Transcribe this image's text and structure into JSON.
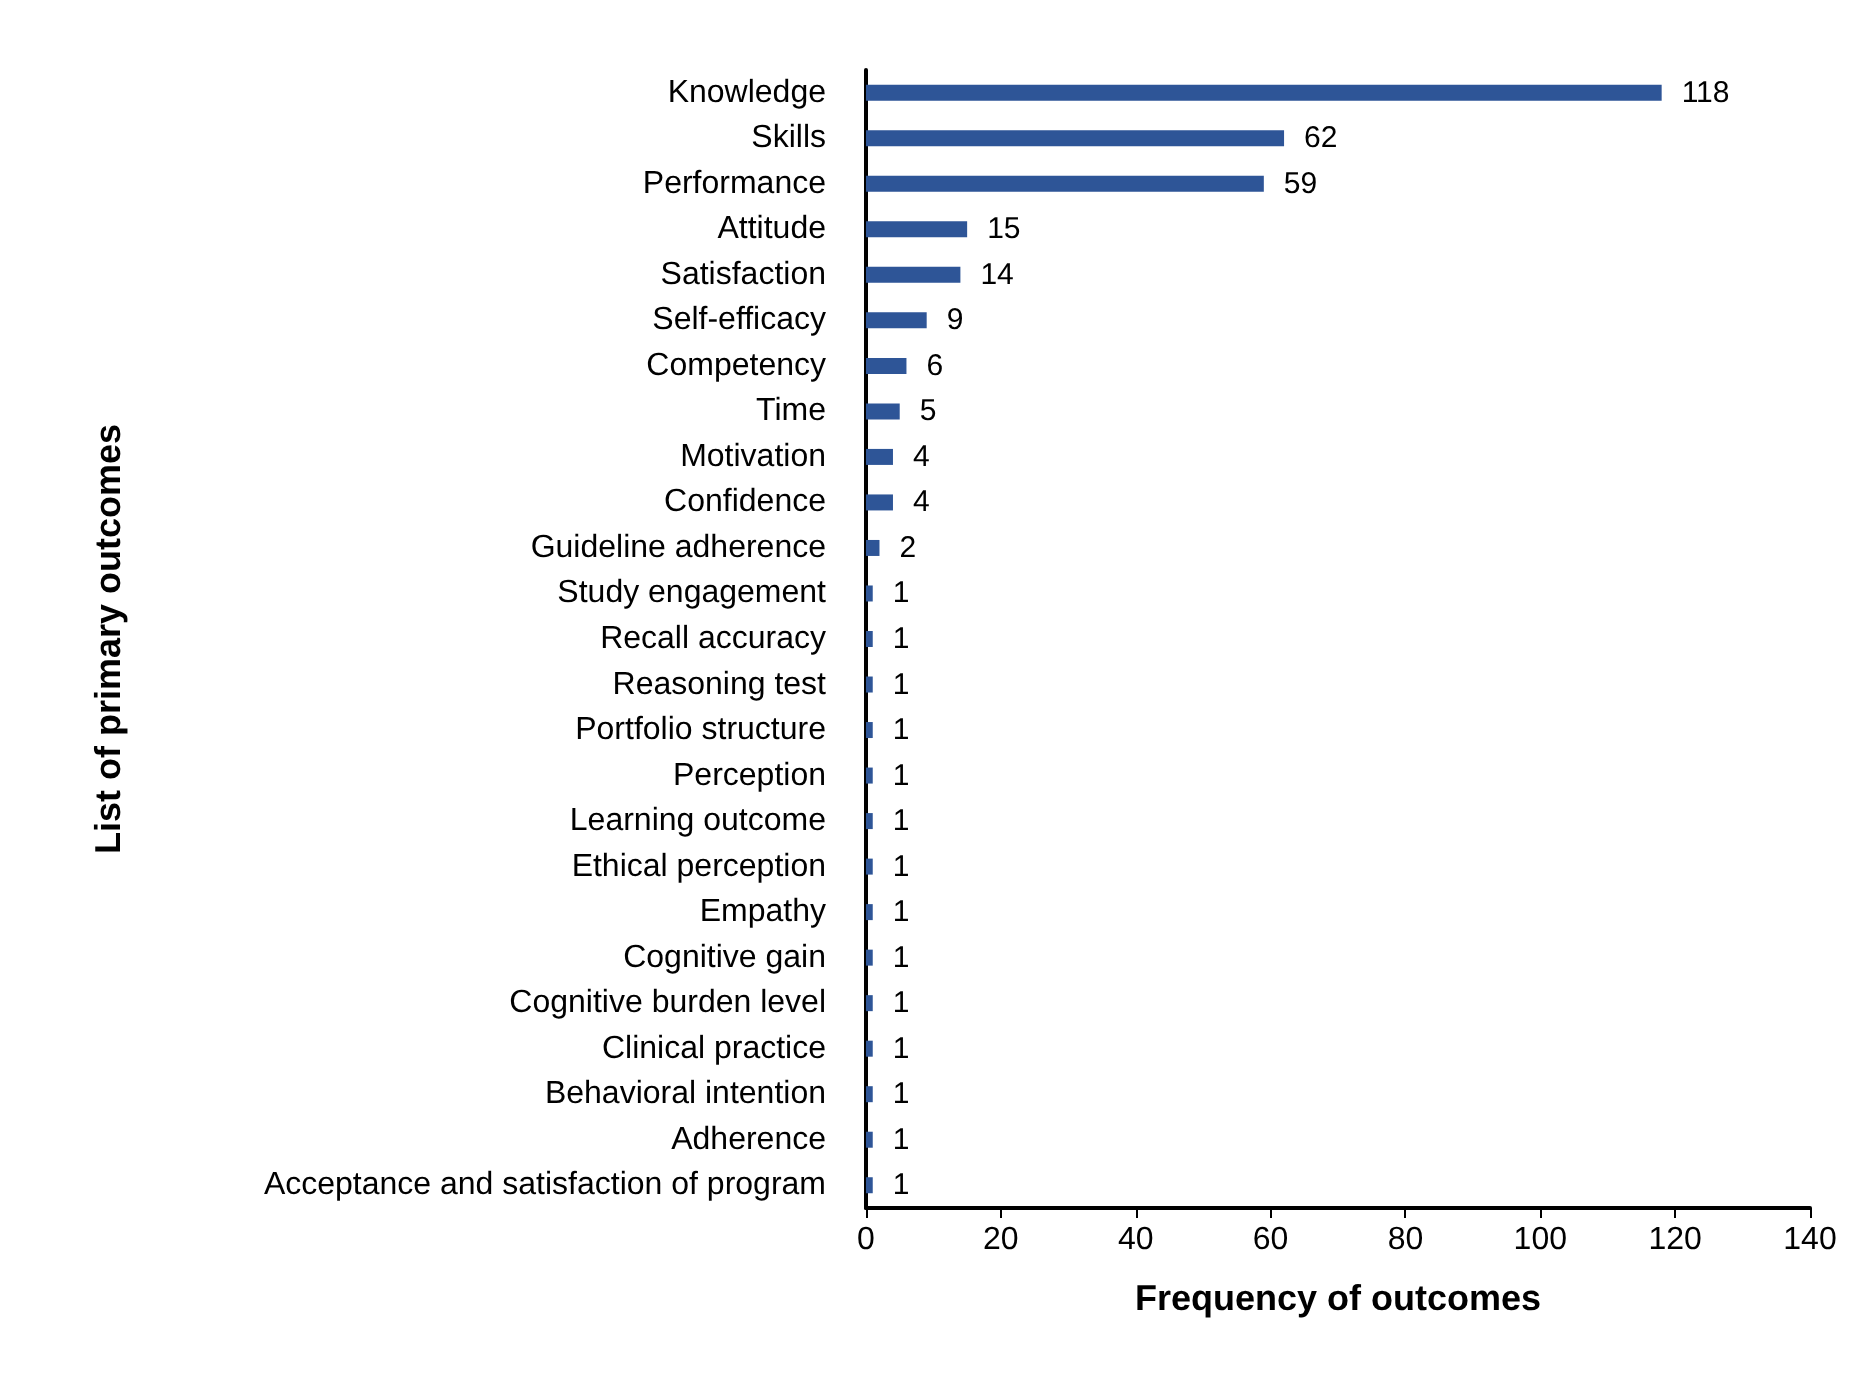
{
  "chart_data": {
    "type": "bar",
    "orientation": "horizontal",
    "xlabel": "Frequency of outcomes",
    "ylabel": "List of primary outcomes",
    "categories": [
      "Knowledge",
      "Skills",
      "Performance",
      "Attitude",
      "Satisfaction",
      "Self-efficacy",
      "Competency",
      "Time",
      "Motivation",
      "Confidence",
      "Guideline adherence",
      "Study engagement",
      "Recall accuracy",
      "Reasoning test",
      "Portfolio structure",
      "Perception",
      "Learning outcome",
      "Ethical perception",
      "Empathy",
      "Cognitive gain",
      "Cognitive burden level",
      "Clinical practice",
      "Behavioral intention",
      "Adherence",
      "Acceptance and satisfaction of program"
    ],
    "values": [
      118,
      62,
      59,
      15,
      14,
      9,
      6,
      5,
      4,
      4,
      2,
      1,
      1,
      1,
      1,
      1,
      1,
      1,
      1,
      1,
      1,
      1,
      1,
      1,
      1
    ],
    "color": "#2e5597",
    "xlim": [
      0,
      140
    ],
    "xticks": [
      0,
      20,
      40,
      60,
      80,
      100,
      120,
      140
    ],
    "data_labels": true,
    "grid": false
  }
}
